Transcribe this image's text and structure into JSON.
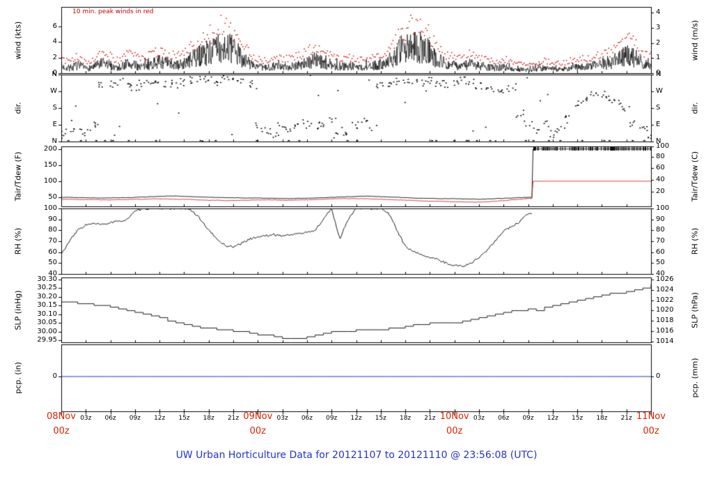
{
  "title": "UW Urban Horticulture Data for 20121107  to  20121110 @ 23:56:08  (UTC)",
  "colors": {
    "trace_black": "#000000",
    "peak_red": "#cc0000",
    "tdew_red": "#cc2222",
    "pcp_blue": "#2233cc",
    "date_red": "#dd2200",
    "title_blue": "#2233cc"
  },
  "x_axis": {
    "minor_tick_labels": [
      "03z",
      "06z",
      "09z",
      "12z",
      "15z",
      "18z",
      "21z"
    ],
    "repeats_days": 3,
    "date_labels": [
      {
        "date": "08Nov",
        "hour": "00z",
        "h": 0
      },
      {
        "date": "09Nov",
        "hour": "00z",
        "h": 24
      },
      {
        "date": "10Nov",
        "hour": "00z",
        "h": 48
      },
      {
        "date": "11Nov",
        "hour": "00z",
        "h": 72
      }
    ],
    "hours_span": [
      0,
      72
    ]
  },
  "chart_data": [
    {
      "type": "line",
      "name": "wind-speed",
      "annotation": "10 min. peak winds in red",
      "ylabel_left": "wind (kts)",
      "ylabel_right": "wind (m/s)",
      "ylim": [
        0,
        8.5
      ],
      "yticks_left": [
        {
          "v": 0,
          "label": "0"
        },
        {
          "v": 2,
          "label": "2"
        },
        {
          "v": 4,
          "label": "4"
        },
        {
          "v": 6,
          "label": "6"
        }
      ],
      "yticks_right": [
        {
          "v": 0,
          "label": "0"
        },
        {
          "v": 1.944,
          "label": "1"
        },
        {
          "v": 3.889,
          "label": "2"
        },
        {
          "v": 5.833,
          "label": "3"
        },
        {
          "v": 7.778,
          "label": "4"
        }
      ],
      "x_start": 0,
      "x_step": 1,
      "series": [
        {
          "name": "wind_kts",
          "color": "#000000",
          "style": "noisy-line",
          "values": [
            1.0,
            0.8,
            1.2,
            0.7,
            1.0,
            1.5,
            1.2,
            0.8,
            1.5,
            1.2,
            1.0,
            1.4,
            1.8,
            1.5,
            1.2,
            1.5,
            2.2,
            2.8,
            3.2,
            3.8,
            4.2,
            3.5,
            2.5,
            1.5,
            1.0,
            0.8,
            1.2,
            0.9,
            1.1,
            1.3,
            1.6,
            2.2,
            1.5,
            1.2,
            1.0,
            1.2,
            1.0,
            0.8,
            1.1,
            1.4,
            2.0,
            3.0,
            3.8,
            4.2,
            3.9,
            3.2,
            2.2,
            1.4,
            1.2,
            1.0,
            1.5,
            1.1,
            0.9,
            0.8,
            1.0,
            0.7,
            0.6,
            0.5,
            0.6,
            0.8,
            0.7,
            0.6,
            0.8,
            0.9,
            1.0,
            1.2,
            1.3,
            1.6,
            2.2,
            2.8,
            2.4,
            1.6,
            1.2
          ]
        },
        {
          "name": "peak_wind_kts",
          "color": "#cc0000",
          "style": "dots",
          "values": [
            1.9,
            1.6,
            2.2,
            1.5,
            1.9,
            2.6,
            2.2,
            1.6,
            2.6,
            2.2,
            1.9,
            2.5,
            3.0,
            2.6,
            2.2,
            2.6,
            3.6,
            4.4,
            5.0,
            5.8,
            6.4,
            5.4,
            4.0,
            2.6,
            1.9,
            1.6,
            2.2,
            1.8,
            2.0,
            2.3,
            2.7,
            3.6,
            2.6,
            2.2,
            1.9,
            2.2,
            1.9,
            1.6,
            2.0,
            2.5,
            3.3,
            4.7,
            5.8,
            6.4,
            6.0,
            5.0,
            3.6,
            2.5,
            2.2,
            1.9,
            2.6,
            2.0,
            1.8,
            1.6,
            1.9,
            1.5,
            1.3,
            1.2,
            1.3,
            1.6,
            1.5,
            1.3,
            1.6,
            1.8,
            1.9,
            2.2,
            2.3,
            2.7,
            3.6,
            4.4,
            3.9,
            2.7,
            2.2
          ]
        }
      ]
    },
    {
      "type": "scatter",
      "name": "wind-direction",
      "ylabel_left": "dir.",
      "ylabel_right": "dir.",
      "ylim": [
        0,
        360
      ],
      "yticks_left": [
        {
          "v": 0,
          "label": "N"
        },
        {
          "v": 90,
          "label": "E"
        },
        {
          "v": 180,
          "label": "S"
        },
        {
          "v": 270,
          "label": "W"
        },
        {
          "v": 360,
          "label": "N"
        }
      ],
      "yticks_right": [
        {
          "v": 0,
          "label": "N"
        },
        {
          "v": 90,
          "label": "E"
        },
        {
          "v": 180,
          "label": "S"
        },
        {
          "v": 270,
          "label": "W"
        },
        {
          "v": 360,
          "label": "N"
        }
      ],
      "x_start": 0,
      "x_step": 1,
      "series": [
        {
          "name": "dir_deg",
          "color": "#000000",
          "style": "points",
          "values": [
            40,
            60,
            80,
            50,
            90,
            300,
            310,
            320,
            300,
            290,
            310,
            320,
            330,
            310,
            300,
            320,
            330,
            340,
            330,
            320,
            335,
            330,
            320,
            310,
            80,
            60,
            40,
            90,
            70,
            100,
            90,
            85,
            95,
            120,
            60,
            30,
            90,
            110,
            70,
            300,
            310,
            320,
            330,
            325,
            315,
            330,
            320,
            310,
            320,
            330,
            315,
            300,
            290,
            280,
            270,
            290,
            150,
            100,
            60,
            90,
            40,
            70,
            120,
            200,
            230,
            250,
            260,
            240,
            210,
            180,
            100,
            60,
            30
          ]
        }
      ]
    },
    {
      "type": "line",
      "name": "temperature",
      "ylabel_left": "Tair/Tdew (F)",
      "ylabel_right": "Tair/Tdew (C)",
      "ylim": [
        22,
        208
      ],
      "offscale_rug": true,
      "yticks_left": [
        {
          "v": 50,
          "label": "50"
        },
        {
          "v": 100,
          "label": "100"
        },
        {
          "v": 150,
          "label": "150"
        },
        {
          "v": 200,
          "label": "200"
        }
      ],
      "yticks_right": [
        {
          "v": 68,
          "label": "20"
        },
        {
          "v": 104,
          "label": "40"
        },
        {
          "v": 140,
          "label": "60"
        },
        {
          "v": 176,
          "label": "80"
        },
        {
          "v": 207,
          "label": "100"
        }
      ],
      "x_start": 0,
      "x_step": 1,
      "series": [
        {
          "name": "tair_f",
          "color": "#000000",
          "style": "line",
          "values": [
            50,
            50,
            49,
            49,
            48,
            48,
            48,
            49,
            49,
            50,
            51,
            52,
            53,
            54,
            54,
            53,
            52,
            51,
            50,
            50,
            49,
            49,
            48,
            48,
            48,
            47,
            47,
            46,
            46,
            47,
            47,
            48,
            49,
            50,
            51,
            52,
            53,
            54,
            53,
            52,
            51,
            50,
            49,
            48,
            47,
            47,
            46,
            46,
            46,
            45,
            45,
            44,
            45,
            46,
            47,
            48,
            49,
            50,
            200,
            200,
            200,
            200,
            200,
            200,
            200,
            200,
            200,
            200,
            200,
            200,
            200,
            200,
            200
          ]
        },
        {
          "name": "tdew_f",
          "color": "#cc2222",
          "style": "line",
          "values": [
            44,
            44,
            43,
            43,
            43,
            42,
            42,
            43,
            43,
            44,
            44,
            45,
            45,
            45,
            44,
            44,
            43,
            42,
            41,
            41,
            40,
            40,
            41,
            41,
            42,
            42,
            42,
            41,
            41,
            42,
            42,
            43,
            44,
            45,
            46,
            46,
            46,
            46,
            45,
            44,
            43,
            42,
            41,
            40,
            39,
            38,
            38,
            37,
            36,
            36,
            35,
            35,
            36,
            38,
            40,
            42,
            44,
            46,
            100,
            100,
            100,
            100,
            100,
            100,
            100,
            100,
            100,
            100,
            100,
            100,
            100,
            100,
            100
          ]
        }
      ]
    },
    {
      "type": "line",
      "name": "relative-humidity",
      "ylabel_left": "RH (%)",
      "ylabel_right": "RH (%)",
      "ylim": [
        40,
        100
      ],
      "yticks_left": [
        {
          "v": 40,
          "label": "40"
        },
        {
          "v": 50,
          "label": "50"
        },
        {
          "v": 60,
          "label": "60"
        },
        {
          "v": 70,
          "label": "70"
        },
        {
          "v": 80,
          "label": "80"
        },
        {
          "v": 90,
          "label": "90"
        },
        {
          "v": 100,
          "label": "100"
        }
      ],
      "yticks_right": [
        {
          "v": 40,
          "label": "40"
        },
        {
          "v": 50,
          "label": "50"
        },
        {
          "v": 60,
          "label": "60"
        },
        {
          "v": 70,
          "label": "70"
        },
        {
          "v": 80,
          "label": "80"
        },
        {
          "v": 90,
          "label": "90"
        },
        {
          "v": 100,
          "label": "100"
        }
      ],
      "x_start": 0,
      "x_step": 1,
      "series": [
        {
          "name": "rh_pct",
          "color": "#000000",
          "style": "noisy-line",
          "values": [
            58,
            70,
            80,
            85,
            86,
            85,
            87,
            88,
            90,
            97,
            100,
            100,
            100,
            100,
            100,
            100,
            98,
            90,
            80,
            72,
            66,
            65,
            68,
            72,
            74,
            75,
            76,
            75,
            76,
            77,
            78,
            80,
            90,
            100,
            72,
            90,
            100,
            100,
            100,
            100,
            95,
            80,
            65,
            60,
            58,
            55,
            53,
            50,
            48,
            47,
            50,
            55,
            62,
            70,
            80,
            83,
            88,
            95,
            null,
            null,
            null,
            null,
            null,
            null,
            null,
            null,
            null,
            null,
            null,
            null,
            null,
            null,
            null
          ]
        }
      ]
    },
    {
      "type": "step",
      "name": "sea-level-pressure",
      "ylabel_left": "SLP (inHg)",
      "ylabel_right": "SLP (hPa)",
      "ylim": [
        29.938,
        30.311
      ],
      "yticks_left": [
        {
          "v": 29.95,
          "label": "29.95"
        },
        {
          "v": 30.0,
          "label": "30.00"
        },
        {
          "v": 30.05,
          "label": "30.05"
        },
        {
          "v": 30.1,
          "label": "30.10"
        },
        {
          "v": 30.15,
          "label": "30.15"
        },
        {
          "v": 30.2,
          "label": "30.20"
        },
        {
          "v": 30.25,
          "label": "30.25"
        },
        {
          "v": 30.3,
          "label": "30.30"
        }
      ],
      "yticks_right": [
        {
          "v": 29.944,
          "label": "1014"
        },
        {
          "v": 30.003,
          "label": "1016"
        },
        {
          "v": 30.062,
          "label": "1018"
        },
        {
          "v": 30.121,
          "label": "1020"
        },
        {
          "v": 30.18,
          "label": "1022"
        },
        {
          "v": 30.239,
          "label": "1024"
        },
        {
          "v": 30.298,
          "label": "1026"
        }
      ],
      "x_start": 0,
      "x_step": 1,
      "series": [
        {
          "name": "slp_inhg",
          "color": "#000000",
          "style": "step",
          "values": [
            30.17,
            30.17,
            30.16,
            30.16,
            30.15,
            30.15,
            30.14,
            30.13,
            30.12,
            30.11,
            30.1,
            30.09,
            30.08,
            30.06,
            30.05,
            30.04,
            30.03,
            30.02,
            30.02,
            30.01,
            30.01,
            30.0,
            30.0,
            29.99,
            29.98,
            29.98,
            29.97,
            29.96,
            29.96,
            29.96,
            29.97,
            29.98,
            29.99,
            30.0,
            30.0,
            30.0,
            30.01,
            30.01,
            30.01,
            30.01,
            30.02,
            30.02,
            30.03,
            30.04,
            30.04,
            30.05,
            30.05,
            30.05,
            30.05,
            30.06,
            30.07,
            30.08,
            30.09,
            30.1,
            30.11,
            30.12,
            30.12,
            30.13,
            30.12,
            30.14,
            30.15,
            30.16,
            30.17,
            30.18,
            30.19,
            30.2,
            30.21,
            30.22,
            30.22,
            30.23,
            30.24,
            30.25,
            30.27
          ]
        }
      ]
    },
    {
      "type": "line",
      "name": "precipitation",
      "ylabel_left": "pcp. (in)",
      "ylabel_right": "pcp. (mm)",
      "ylim": [
        -0.52,
        0.48
      ],
      "yticks_left": [
        {
          "v": 0,
          "label": "0"
        }
      ],
      "yticks_right": [
        {
          "v": 0,
          "label": "0"
        }
      ],
      "x_start": 0,
      "x_step": 1,
      "series": [
        {
          "name": "pcp_in",
          "color": "#2233cc",
          "style": "line",
          "values": [
            0,
            0,
            0,
            0,
            0,
            0,
            0,
            0,
            0,
            0,
            0,
            0,
            0,
            0,
            0,
            0,
            0,
            0,
            0,
            0,
            0,
            0,
            0,
            0,
            0,
            0,
            0,
            0,
            0,
            0,
            0,
            0,
            0,
            0,
            0,
            0,
            0,
            0,
            0,
            0,
            0,
            0,
            0,
            0,
            0,
            0,
            0,
            0,
            0,
            0,
            0,
            0,
            0,
            0,
            0,
            0,
            0,
            0,
            0,
            0,
            0,
            0,
            0,
            0,
            0,
            0,
            0,
            0,
            0,
            0,
            0,
            0,
            0
          ]
        }
      ]
    }
  ]
}
